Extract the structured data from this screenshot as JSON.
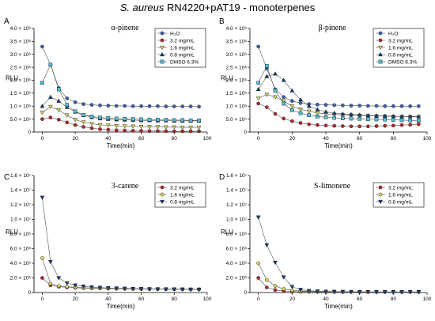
{
  "figure": {
    "title_species": "S. aureus",
    "title_rest": " RN4220+pAT19 - monoterpenes"
  },
  "chart_data": [
    {
      "type": "line",
      "panel_label": "A",
      "title": "α-pinene",
      "xlabel": "Time(min)",
      "ylabel": "RLU",
      "xlim": [
        -5,
        100
      ],
      "ylim": [
        0,
        4000000
      ],
      "xticks": [
        0,
        20,
        40,
        60,
        80,
        100
      ],
      "yticks": [
        0,
        500000,
        1000000,
        1500000,
        2000000,
        2500000,
        3000000,
        3500000,
        4000000
      ],
      "ytick_labels": [
        "0",
        "5.0 × 10⁵",
        "1.0 × 10⁶",
        "1.5 × 10⁶",
        "2.0 × 10⁶",
        "2.5 × 10⁶",
        "3.0 × 10⁶",
        "3.5 × 10⁶",
        "4.0 × 10⁶"
      ],
      "legend_position": "top-right",
      "x": [
        0,
        5,
        10,
        15,
        20,
        25,
        30,
        35,
        40,
        45,
        50,
        55,
        60,
        65,
        70,
        75,
        80,
        85,
        90,
        95
      ],
      "series": [
        {
          "name": "H₂O",
          "color": "#3b63b0",
          "marker": "circle",
          "values": [
            3300000,
            2600000,
            1700000,
            1300000,
            1150000,
            1080000,
            1050000,
            1030000,
            1020000,
            1010000,
            1010000,
            1000000,
            1000000,
            1000000,
            1000000,
            990000,
            990000,
            990000,
            990000,
            980000
          ]
        },
        {
          "name": "3.2 mg/mL",
          "color": "#b52a2a",
          "marker": "circle",
          "values": [
            500000,
            560000,
            480000,
            370000,
            270000,
            200000,
            150000,
            110000,
            90000,
            70000,
            60000,
            50000,
            45000,
            40000,
            40000,
            35000,
            30000,
            30000,
            30000,
            30000
          ]
        },
        {
          "name": "1.6 mg/mL",
          "color": "#d8d35a",
          "marker": "triangle-down",
          "values": [
            750000,
            980000,
            850000,
            650000,
            480000,
            380000,
            320000,
            280000,
            260000,
            240000,
            230000,
            220000,
            210000,
            200000,
            200000,
            190000,
            190000,
            180000,
            180000,
            180000
          ]
        },
        {
          "name": "0.8 mg/mL",
          "color": "#1f3b7a",
          "marker": "triangle-up",
          "values": [
            1000000,
            1350000,
            1200000,
            960000,
            780000,
            650000,
            570000,
            520000,
            500000,
            480000,
            470000,
            460000,
            450000,
            450000,
            440000,
            440000,
            430000,
            430000,
            430000,
            430000
          ]
        },
        {
          "name": "DMSO 6.3%",
          "color": "#4fc3d8",
          "marker": "square",
          "values": [
            1900000,
            2600000,
            1650000,
            1050000,
            800000,
            660000,
            600000,
            560000,
            540000,
            520000,
            510000,
            500000,
            490000,
            480000,
            480000,
            470000,
            460000,
            460000,
            450000,
            450000
          ]
        }
      ]
    },
    {
      "type": "line",
      "panel_label": "B",
      "title": "β-pinene",
      "xlabel": "Time(min)",
      "ylabel": "RLU",
      "xlim": [
        -5,
        100
      ],
      "ylim": [
        0,
        4000000
      ],
      "xticks": [
        0,
        20,
        40,
        60,
        80,
        100
      ],
      "yticks": [
        0,
        500000,
        1000000,
        1500000,
        2000000,
        2500000,
        3000000,
        3500000,
        4000000
      ],
      "ytick_labels": [
        "0",
        "5.0 × 10⁵",
        "1.0 × 10⁶",
        "1.5 × 10⁶",
        "2.0 × 10⁶",
        "2.5 × 10⁶",
        "3.0 × 10⁶",
        "3.5 × 10⁶",
        "4.0 × 10⁶"
      ],
      "legend_position": "top-right",
      "x": [
        0,
        5,
        10,
        15,
        20,
        25,
        30,
        35,
        40,
        45,
        50,
        55,
        60,
        65,
        70,
        75,
        80,
        85,
        90,
        95
      ],
      "series": [
        {
          "name": "H₂O",
          "color": "#3b63b0",
          "marker": "circle",
          "values": [
            3300000,
            2450000,
            1650000,
            1350000,
            1200000,
            1120000,
            1080000,
            1060000,
            1050000,
            1040000,
            1030000,
            1020000,
            1020000,
            1010000,
            1010000,
            1000000,
            1000000,
            1000000,
            1000000,
            1000000
          ]
        },
        {
          "name": "3.2 mg/mL",
          "color": "#b52a2a",
          "marker": "circle",
          "values": [
            1100000,
            960000,
            700000,
            520000,
            420000,
            350000,
            300000,
            270000,
            250000,
            240000,
            230000,
            220000,
            220000,
            220000,
            230000,
            240000,
            250000,
            270000,
            280000,
            300000
          ]
        },
        {
          "name": "1.6 mg/mL",
          "color": "#d8d35a",
          "marker": "triangle-down",
          "values": [
            1300000,
            1450000,
            1350000,
            1200000,
            1000000,
            880000,
            800000,
            740000,
            700000,
            680000,
            660000,
            650000,
            640000,
            630000,
            620000,
            610000,
            600000,
            600000,
            590000,
            580000
          ]
        },
        {
          "name": "0.8 mg/mL",
          "color": "#1f3b7a",
          "marker": "triangle-up",
          "values": [
            1650000,
            2150000,
            2250000,
            2000000,
            1600000,
            1250000,
            1000000,
            870000,
            780000,
            730000,
            700000,
            680000,
            660000,
            640000,
            630000,
            620000,
            610000,
            600000,
            600000,
            600000
          ]
        },
        {
          "name": "DMSO 6.3%",
          "color": "#4fc3d8",
          "marker": "square",
          "values": [
            1900000,
            2550000,
            1600000,
            1100000,
            850000,
            730000,
            650000,
            600000,
            570000,
            550000,
            530000,
            520000,
            510000,
            500000,
            490000,
            480000,
            470000,
            460000,
            450000,
            440000
          ]
        }
      ]
    },
    {
      "type": "line",
      "panel_label": "C",
      "title": "3-carene",
      "xlabel": "Time(min)",
      "ylabel": "RLU",
      "xlim": [
        -5,
        100
      ],
      "ylim": [
        0,
        16000000
      ],
      "xticks": [
        0,
        20,
        40,
        60,
        80,
        100
      ],
      "yticks": [
        0,
        2000000,
        4000000,
        6000000,
        8000000,
        10000000,
        12000000,
        14000000,
        16000000
      ],
      "ytick_labels": [
        "0",
        "2.0 × 10⁶",
        "4.0 × 10⁶",
        "6.0 × 10⁶",
        "8.0 × 10⁶",
        "1.0 × 10⁷",
        "1.2 × 10⁷",
        "1.4 × 10⁷",
        "1.6 × 10⁷"
      ],
      "legend_position": "top-right",
      "x": [
        0,
        5,
        10,
        15,
        20,
        25,
        30,
        35,
        40,
        45,
        50,
        55,
        60,
        65,
        70,
        75,
        80,
        85,
        90,
        95
      ],
      "series": [
        {
          "name": "3.2 mg/mL",
          "color": "#b52a2a",
          "marker": "circle",
          "values": [
            2000000,
            1000000,
            800000,
            700000,
            650000,
            600000,
            580000,
            560000,
            540000,
            520000,
            500000,
            490000,
            480000,
            470000,
            460000,
            450000,
            440000,
            430000,
            420000,
            420000
          ]
        },
        {
          "name": "1.6 mg/mL",
          "color": "#d8d35a",
          "marker": "circle",
          "values": [
            4700000,
            1200000,
            900000,
            800000,
            720000,
            660000,
            620000,
            590000,
            560000,
            540000,
            520000,
            500000,
            490000,
            480000,
            470000,
            460000,
            450000,
            440000,
            430000,
            430000
          ]
        },
        {
          "name": "0.8 mg/mL",
          "color": "#1f3b7a",
          "marker": "triangle-down",
          "values": [
            13000000,
            4200000,
            2000000,
            1300000,
            1000000,
            850000,
            750000,
            680000,
            630000,
            590000,
            560000,
            530000,
            510000,
            490000,
            480000,
            470000,
            460000,
            450000,
            440000,
            430000
          ]
        }
      ]
    },
    {
      "type": "line",
      "panel_label": "D",
      "title": "S-limonene",
      "xlabel": "Time(min)",
      "ylabel": "RLU",
      "xlim": [
        -5,
        100
      ],
      "ylim": [
        0,
        16000000
      ],
      "xticks": [
        0,
        20,
        40,
        60,
        80,
        100
      ],
      "yticks": [
        0,
        2000000,
        4000000,
        6000000,
        8000000,
        10000000,
        12000000,
        14000000,
        16000000
      ],
      "ytick_labels": [
        "0",
        "2.0 × 10⁶",
        "4.0 × 10⁶",
        "6.0 × 10⁶",
        "8.0 × 10⁶",
        "1.0 × 10⁷",
        "1.2 × 10⁷",
        "1.4 × 10⁷",
        "1.6 × 10⁷"
      ],
      "legend_position": "top-right",
      "x": [
        0,
        5,
        10,
        15,
        20,
        25,
        30,
        35,
        40,
        45,
        50,
        55,
        60,
        65,
        70,
        75,
        80,
        85,
        90,
        95
      ],
      "series": [
        {
          "name": "3.2 mg/mL",
          "color": "#b52a2a",
          "marker": "circle",
          "values": [
            2000000,
            700000,
            350000,
            200000,
            150000,
            120000,
            100000,
            90000,
            80000,
            80000,
            70000,
            70000,
            70000,
            60000,
            60000,
            60000,
            60000,
            60000,
            60000,
            60000
          ]
        },
        {
          "name": "1.6 mg/mL",
          "color": "#d8d35a",
          "marker": "circle",
          "values": [
            4000000,
            1700000,
            900000,
            500000,
            300000,
            220000,
            170000,
            140000,
            120000,
            110000,
            100000,
            90000,
            90000,
            80000,
            80000,
            80000,
            80000,
            70000,
            70000,
            70000
          ]
        },
        {
          "name": "0.8 mg/mL",
          "color": "#1f3b7a",
          "marker": "triangle-down",
          "values": [
            10300000,
            6500000,
            4100000,
            2100000,
            800000,
            400000,
            250000,
            180000,
            150000,
            130000,
            120000,
            110000,
            100000,
            100000,
            90000,
            90000,
            90000,
            90000,
            90000,
            90000
          ]
        }
      ]
    }
  ]
}
